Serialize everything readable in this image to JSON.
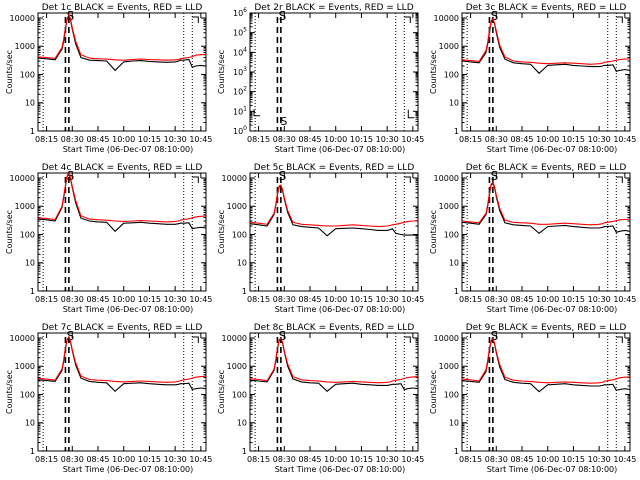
{
  "chart_data": {
    "type": "line",
    "grid": false,
    "layout": "3x3 panels",
    "colors": {
      "events": "#000000",
      "lld": "#ff0000",
      "axes": "#000000"
    },
    "xlabel": "Start Time (06-Dec-07 08:10:00)",
    "ylabel": "Counts/sec",
    "x_ticklabels": [
      "08:15",
      "08:30",
      "08:45",
      "10:00",
      "10:15",
      "10:30",
      "10:45"
    ],
    "x_ticks_min": [
      15,
      30,
      45,
      60,
      75,
      90,
      105
    ],
    "xlim_min": [
      10,
      108
    ],
    "y_log": true,
    "ylim": [
      1,
      15000
    ],
    "y_ticklabels": [
      "1",
      "10",
      "100",
      "1000",
      "10000"
    ],
    "ylim_empty": [
      1,
      1000000
    ],
    "y_ticklabels_empty": [
      "10^0",
      "10^1",
      "10^2",
      "10^3",
      "10^4",
      "10^5",
      "10^6"
    ],
    "dashed_lines_min": [
      26,
      28
    ],
    "dotted_lines_min": [
      13,
      95,
      100
    ],
    "x_min": [
      10,
      15,
      20,
      24,
      25,
      26,
      27,
      28,
      29,
      30,
      32,
      35,
      40,
      45,
      50,
      55,
      60,
      65,
      70,
      75,
      80,
      85,
      90,
      92,
      93,
      95,
      98,
      100,
      102,
      105,
      108
    ],
    "panels": [
      {
        "title": "Det 1c BLACK = Events, RED = LLD",
        "marker": "S",
        "empty": false,
        "series": [
          {
            "name": "BLACK = Events",
            "values": [
              380,
              360,
              330,
              800,
              1500,
              4000,
              9000,
              12000,
              8000,
              4000,
              1200,
              400,
              320,
              310,
              300,
              140,
              280,
              300,
              310,
              290,
              280,
              270,
              280,
              300,
              320,
              320,
              340,
              180,
              200,
              210,
              200
            ]
          },
          {
            "name": "RED = LLD",
            "values": [
              420,
              400,
              370,
              900,
              1800,
              4500,
              9500,
              13000,
              9000,
              4500,
              1500,
              500,
              380,
              360,
              350,
              330,
              320,
              340,
              350,
              340,
              330,
              320,
              330,
              340,
              360,
              380,
              400,
              430,
              480,
              500,
              520
            ]
          }
        ]
      },
      {
        "title": "Det 2r BLACK = Events, RED = LLD",
        "marker": "S",
        "empty": true,
        "series": []
      },
      {
        "title": "Det 3c BLACK = Events, RED = LLD",
        "marker": "S",
        "empty": false,
        "series": [
          {
            "name": "BLACK = Events",
            "values": [
              300,
              280,
              260,
              600,
              1200,
              3000,
              7000,
              9000,
              6000,
              3000,
              900,
              350,
              260,
              240,
              230,
              110,
              210,
              220,
              230,
              210,
              200,
              190,
              190,
              200,
              210,
              210,
              220,
              130,
              140,
              150,
              140
            ]
          },
          {
            "name": "RED = LLD",
            "values": [
              330,
              310,
              290,
              700,
              1400,
              3500,
              7500,
              9500,
              6500,
              3500,
              1100,
              420,
              300,
              280,
              270,
              250,
              240,
              250,
              260,
              250,
              240,
              230,
              240,
              250,
              270,
              280,
              300,
              320,
              340,
              350,
              360
            ]
          }
        ]
      },
      {
        "title": "Det 4c BLACK = Events, RED = LLD",
        "marker": "S",
        "empty": false,
        "series": [
          {
            "name": "BLACK = Events",
            "values": [
              350,
              330,
              300,
              900,
              2000,
              5000,
              11000,
              14000,
              9000,
              4500,
              1300,
              380,
              300,
              280,
              270,
              130,
              250,
              260,
              270,
              250,
              240,
              230,
              230,
              240,
              250,
              250,
              260,
              160,
              170,
              180,
              170
            ]
          },
          {
            "name": "RED = LLD",
            "values": [
              390,
              370,
              340,
              1000,
              2300,
              5500,
              12000,
              15000,
              10000,
              5000,
              1600,
              460,
              350,
              330,
              320,
              300,
              290,
              300,
              310,
              300,
              290,
              280,
              290,
              300,
              320,
              340,
              360,
              390,
              420,
              440,
              450
            ]
          }
        ]
      },
      {
        "title": "Det 5c BLACK = Events, RED = LLD",
        "marker": "S",
        "empty": false,
        "series": [
          {
            "name": "BLACK = Events",
            "values": [
              240,
              220,
              200,
              500,
              1000,
              2500,
              4800,
              5200,
              3500,
              1800,
              600,
              220,
              190,
              180,
              170,
              90,
              160,
              165,
              170,
              160,
              150,
              140,
              140,
              150,
              160,
              110,
              100,
              95,
              95,
              95,
              95
            ]
          },
          {
            "name": "RED = LLD",
            "values": [
              270,
              250,
              230,
              560,
              1100,
              2800,
              5200,
              5600,
              3800,
              2000,
              700,
              270,
              230,
              220,
              210,
              200,
              200,
              210,
              220,
              210,
              200,
              190,
              200,
              210,
              220,
              230,
              250,
              270,
              290,
              300,
              310
            ]
          }
        ]
      },
      {
        "title": "Det 6c BLACK = Events, RED = LLD",
        "marker": "S",
        "empty": false,
        "series": [
          {
            "name": "BLACK = Events",
            "values": [
              270,
              250,
              230,
              500,
              1000,
              2500,
              5500,
              6500,
              4500,
              2200,
              700,
              260,
              220,
              210,
              200,
              110,
              190,
              200,
              210,
              190,
              180,
              170,
              170,
              180,
              190,
              190,
              200,
              120,
              130,
              140,
              130
            ]
          },
          {
            "name": "RED = LLD",
            "values": [
              300,
              280,
              260,
              560,
              1150,
              2900,
              6000,
              7000,
              5000,
              2500,
              850,
              320,
              270,
              260,
              250,
              230,
              230,
              240,
              250,
              240,
              230,
              220,
              230,
              240,
              260,
              270,
              290,
              310,
              330,
              340,
              350
            ]
          }
        ]
      },
      {
        "title": "Det 7c BLACK = Events, RED = LLD",
        "marker": "S",
        "empty": false,
        "series": [
          {
            "name": "BLACK = Events",
            "values": [
              330,
              310,
              290,
              700,
              1500,
              4000,
              8500,
              10000,
              7000,
              3500,
              1100,
              380,
              290,
              270,
              260,
              130,
              240,
              250,
              260,
              240,
              230,
              220,
              220,
              230,
              240,
              240,
              250,
              150,
              160,
              170,
              160
            ]
          },
          {
            "name": "RED = LLD",
            "values": [
              370,
              350,
              320,
              800,
              1700,
              4500,
              9000,
              11000,
              7500,
              3800,
              1300,
              450,
              340,
              320,
              310,
              290,
              280,
              290,
              300,
              290,
              280,
              270,
              280,
              290,
              310,
              330,
              350,
              380,
              410,
              430,
              440
            ]
          }
        ]
      },
      {
        "title": "Det 8c BLACK = Events, RED = LLD",
        "marker": "S",
        "empty": false,
        "series": [
          {
            "name": "BLACK = Events",
            "values": [
              320,
              300,
              280,
              700,
              1500,
              4000,
              8000,
              9000,
              6500,
              3200,
              1000,
              360,
              280,
              260,
              250,
              130,
              230,
              240,
              250,
              230,
              220,
              210,
              210,
              220,
              230,
              230,
              240,
              150,
              160,
              170,
              160
            ]
          },
          {
            "name": "RED = LLD",
            "values": [
              360,
              340,
              310,
              780,
              1650,
              4300,
              8500,
              9800,
              7000,
              3500,
              1200,
              430,
              330,
              310,
              300,
              280,
              270,
              280,
              290,
              280,
              270,
              260,
              270,
              280,
              300,
              320,
              340,
              370,
              400,
              420,
              430
            ]
          }
        ]
      },
      {
        "title": "Det 9c BLACK = Events, RED = LLD",
        "marker": "S",
        "empty": false,
        "series": [
          {
            "name": "BLACK = Events",
            "values": [
              310,
              290,
              270,
              650,
              1400,
              3800,
              7500,
              8500,
              6000,
              3000,
              950,
              340,
              270,
              250,
              240,
              125,
              220,
              230,
              240,
              220,
              210,
              200,
              200,
              210,
              220,
              220,
              230,
              140,
              150,
              160,
              150
            ]
          },
          {
            "name": "RED = LLD",
            "values": [
              350,
              330,
              300,
              750,
              1600,
              4200,
              8000,
              9200,
              6600,
              3300,
              1150,
              410,
              320,
              300,
              290,
              270,
              260,
              270,
              280,
              270,
              260,
              250,
              260,
              270,
              290,
              310,
              330,
              360,
              390,
              410,
              420
            ]
          }
        ]
      }
    ]
  }
}
